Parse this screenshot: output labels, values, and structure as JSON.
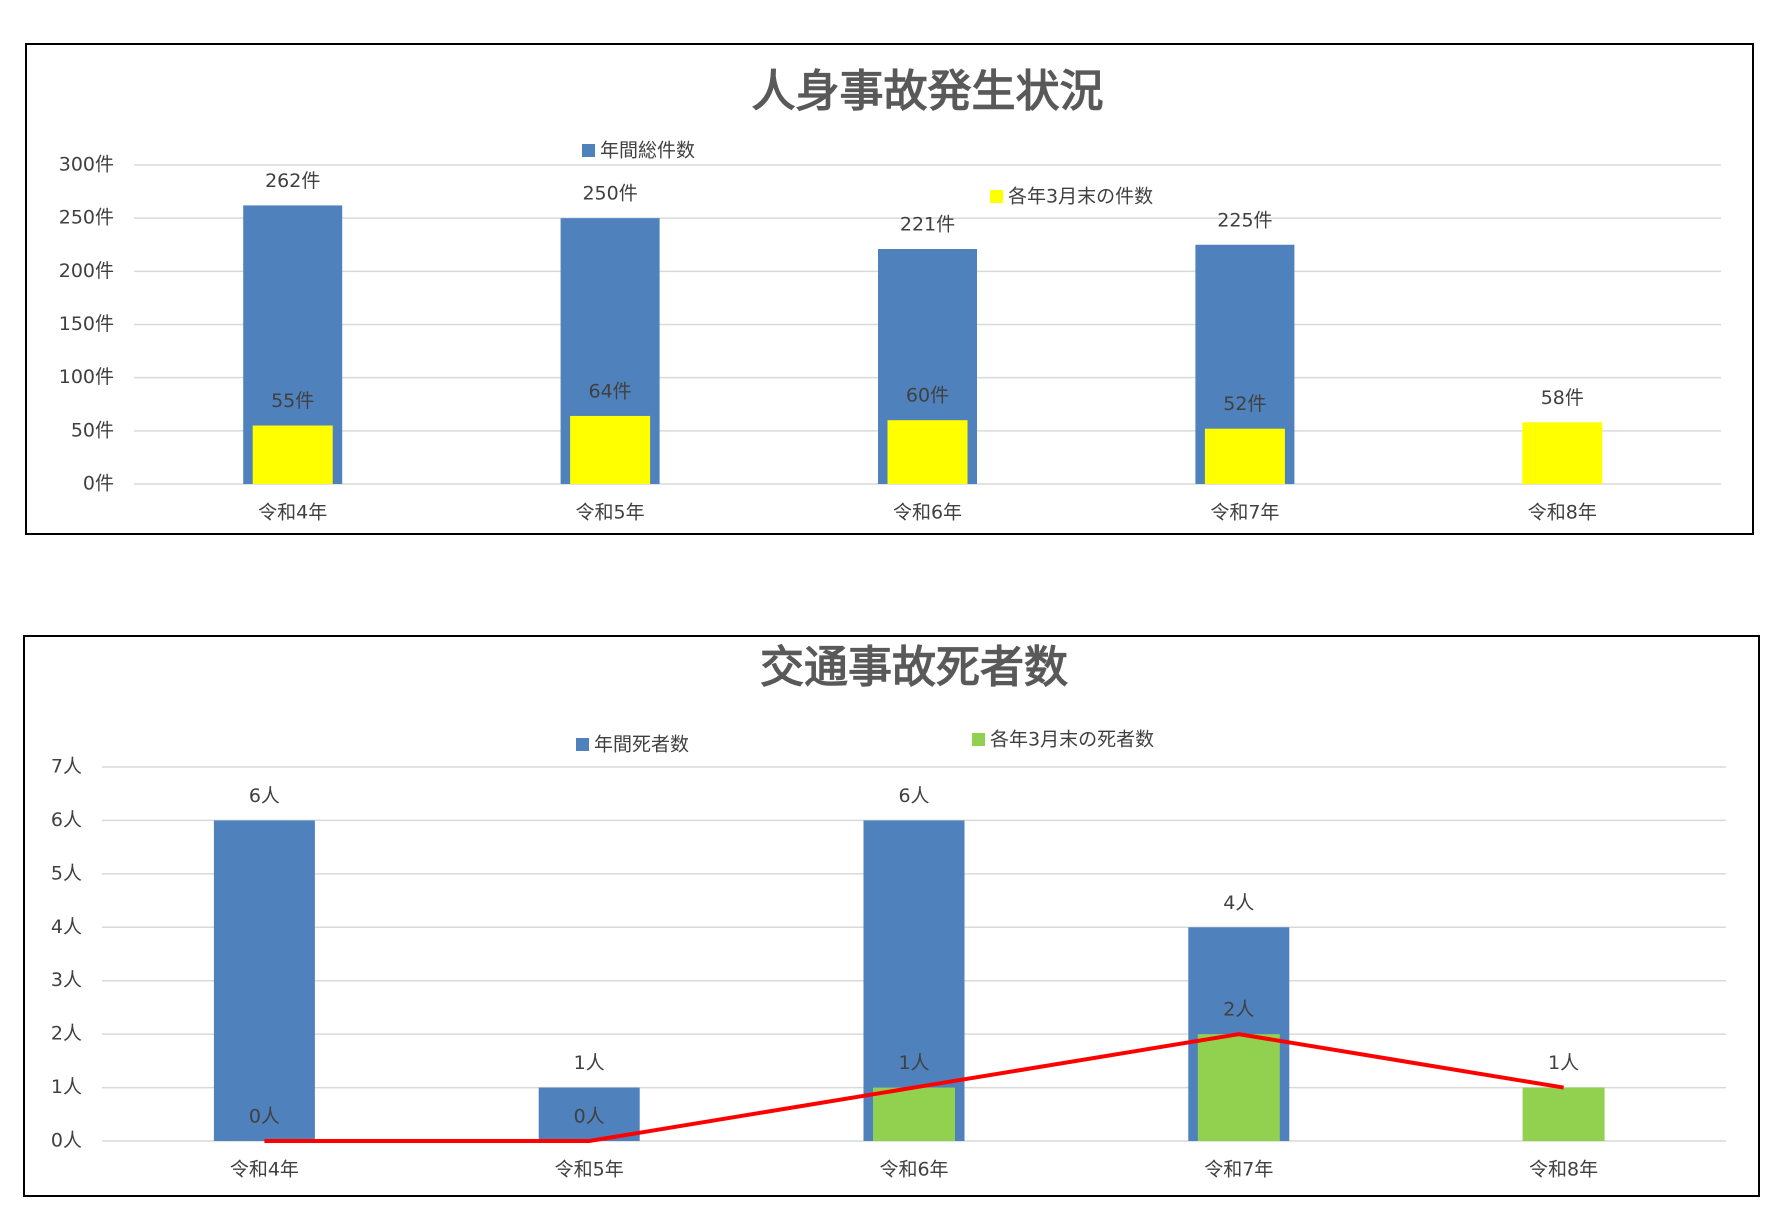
{
  "chart_data": [
    {
      "type": "bar",
      "title": "人身事故発生状況",
      "categories": [
        "令和4年",
        "令和5年",
        "令和6年",
        "令和7年",
        "令和8年"
      ],
      "series": [
        {
          "name": "年間総件数",
          "color": "#4f81bd",
          "values": [
            262,
            250,
            221,
            225,
            null
          ],
          "value_labels": [
            "262件",
            "250件",
            "221件",
            "225件",
            null
          ]
        },
        {
          "name": "各年3月末の件数",
          "color": "#ffff00",
          "values": [
            55,
            64,
            60,
            52,
            58
          ],
          "value_labels": [
            "55件",
            "64件",
            "60件",
            "52件",
            "58件"
          ]
        }
      ],
      "ylim": [
        0,
        300
      ],
      "yticks": [
        {
          "value": 0,
          "label": "0件"
        },
        {
          "value": 50,
          "label": "50件"
        },
        {
          "value": 100,
          "label": "100件"
        },
        {
          "value": 150,
          "label": "150件"
        },
        {
          "value": 200,
          "label": "200件"
        },
        {
          "value": 250,
          "label": "250件"
        },
        {
          "value": 300,
          "label": "300件"
        }
      ],
      "grid": true
    },
    {
      "type": "bar",
      "title": "交通事故死者数",
      "categories": [
        "令和4年",
        "令和5年",
        "令和6年",
        "令和7年",
        "令和8年"
      ],
      "series": [
        {
          "name": "年間死者数",
          "color": "#4f81bd",
          "values": [
            6,
            1,
            6,
            4,
            null
          ],
          "value_labels": [
            "6人",
            "1人",
            "6人",
            "4人",
            null
          ]
        },
        {
          "name": "各年3月末の死者数",
          "color": "#92d050",
          "values": [
            0,
            0,
            1,
            2,
            1
          ],
          "value_labels": [
            "0人",
            "0人",
            "1人",
            "2人",
            "1人"
          ]
        },
        {
          "type": "line",
          "color": "#ff0000",
          "values": [
            0,
            0,
            1,
            2,
            1
          ]
        }
      ],
      "ylim": [
        0,
        7
      ],
      "yticks": [
        {
          "value": 0,
          "label": "0人"
        },
        {
          "value": 1,
          "label": "1人"
        },
        {
          "value": 2,
          "label": "2人"
        },
        {
          "value": 3,
          "label": "3人"
        },
        {
          "value": 4,
          "label": "4人"
        },
        {
          "value": 5,
          "label": "5人"
        },
        {
          "value": 6,
          "label": "6人"
        },
        {
          "value": 7,
          "label": "7人"
        }
      ],
      "grid": true
    }
  ]
}
